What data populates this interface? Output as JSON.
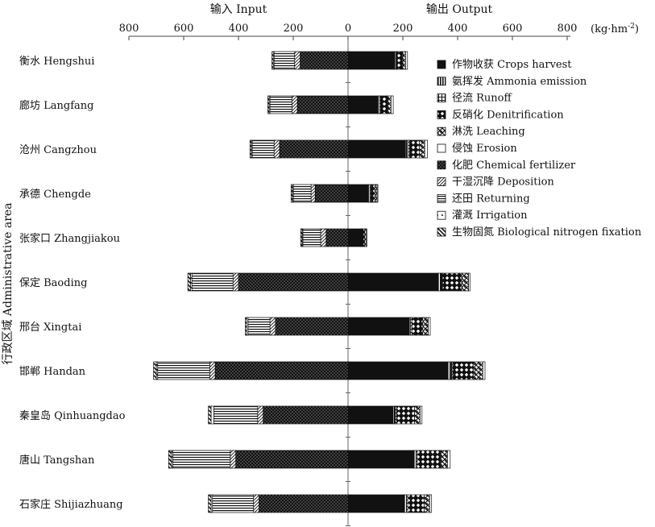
{
  "chart_data": {
    "type": "bar",
    "orientation": "horizontal-diverging",
    "input_label": "输入 Input",
    "output_label": "输出 Output",
    "unit_label": "(kg·hm",
    "unit_exp": "-2",
    "unit_close": ")",
    "ylabel": "行政区域 Administrative area",
    "xlim": [
      -800,
      800
    ],
    "x_ticks": [
      -800,
      -600,
      -400,
      -200,
      0,
      200,
      400,
      600,
      800
    ],
    "x_tick_labels": [
      "800",
      "600",
      "400",
      "200",
      "0",
      "200",
      "400",
      "600",
      "800"
    ],
    "legend_position": "right",
    "categories": [
      "衡水 Hengshui",
      "廊坊 Langfang",
      "沧州 Cangzhou",
      "承德 Chengde",
      "张家口 Zhangjiakou",
      "保定 Baoding",
      "邢台 Xingtai",
      "邯郸 Handan",
      "秦皇岛 Qinhuangdao",
      "唐山 Tangshan",
      "石家庄 Shijiazhuang"
    ],
    "output_series": [
      {
        "name": "作物收获 Crops harvest",
        "pattern": "solid",
        "values": [
          170,
          110,
          210,
          75,
          45,
          330,
          220,
          365,
          165,
          240,
          205
        ]
      },
      {
        "name": "氨挥发 Ammonia emission",
        "pattern": "vstripe",
        "values": [
          5,
          5,
          10,
          5,
          3,
          10,
          8,
          12,
          8,
          8,
          8
        ]
      },
      {
        "name": "径流 Runoff",
        "pattern": "grid",
        "values": [
          5,
          5,
          5,
          3,
          3,
          5,
          5,
          5,
          5,
          5,
          5
        ]
      },
      {
        "name": "反硝化 Denitrification",
        "pattern": "diamond",
        "values": [
          20,
          25,
          35,
          15,
          10,
          70,
          40,
          75,
          65,
          85,
          60
        ]
      },
      {
        "name": "淋洗 Leaching",
        "pattern": "hatch-cross",
        "values": [
          10,
          12,
          20,
          8,
          5,
          25,
          20,
          35,
          20,
          25,
          20
        ]
      },
      {
        "name": "侵蚀 Erosion",
        "pattern": "empty",
        "values": [
          7,
          8,
          10,
          3,
          3,
          5,
          7,
          8,
          7,
          10,
          7
        ]
      }
    ],
    "input_series": [
      {
        "name": "化肥 Chemical fertilizer",
        "pattern": "dots",
        "values": [
          175,
          185,
          250,
          120,
          80,
          400,
          265,
          485,
          310,
          410,
          325
        ]
      },
      {
        "name": "干湿沉降 Deposition",
        "pattern": "diag",
        "values": [
          20,
          20,
          20,
          15,
          20,
          20,
          20,
          20,
          20,
          20,
          20
        ]
      },
      {
        "name": "还田 Returning",
        "pattern": "hstripe",
        "values": [
          75,
          80,
          80,
          65,
          65,
          150,
          80,
          190,
          160,
          210,
          150
        ]
      },
      {
        "name": "灌溉 Irrigation",
        "pattern": "dotbox",
        "values": [
          3,
          3,
          3,
          3,
          3,
          5,
          5,
          5,
          10,
          5,
          5
        ]
      },
      {
        "name": "生物固氮 Biological nitrogen fixation",
        "pattern": "diag-thick",
        "values": [
          5,
          5,
          5,
          5,
          5,
          10,
          5,
          10,
          10,
          10,
          10
        ]
      }
    ],
    "legend_order": [
      "作物收获 Crops harvest",
      "氨挥发 Ammonia emission",
      "径流 Runoff",
      "反硝化 Denitrification",
      "淋洗 Leaching",
      "侵蚀 Erosion",
      "化肥 Chemical fertilizer",
      "干湿沉降 Deposition",
      "还田 Returning",
      "灌溉 Irrigation",
      "生物固氮 Biological nitrogen fixation"
    ]
  }
}
